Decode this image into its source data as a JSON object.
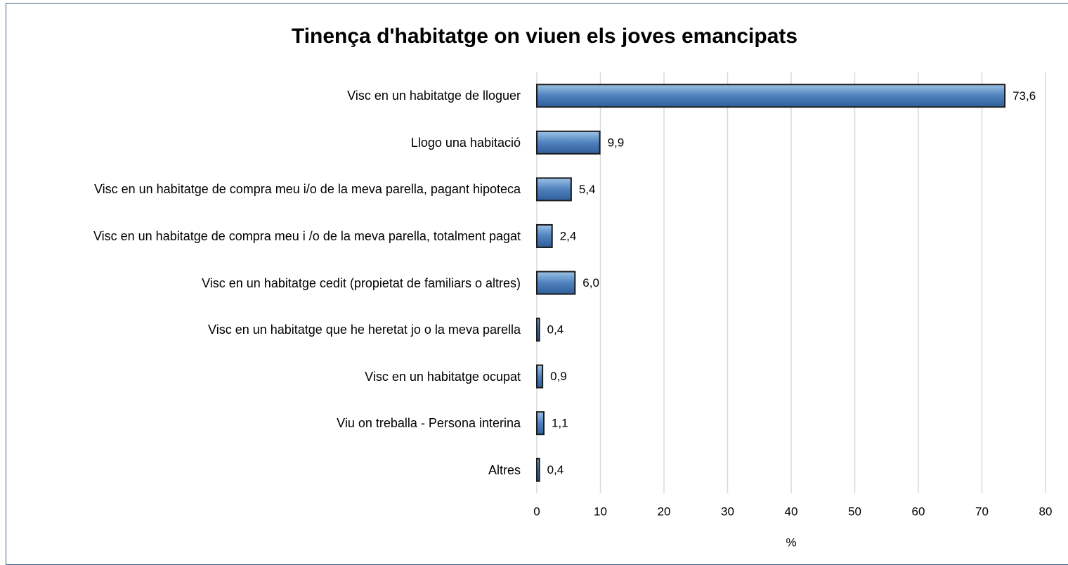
{
  "chart_data": {
    "type": "bar",
    "orientation": "horizontal",
    "title": "Tinença d'habitatge on viuen els joves emancipats",
    "categories": [
      "Visc en un habitatge de lloguer",
      "Llogo una habitació",
      "Visc en un habitatge de compra meu i/o de la meva parella, pagant hipoteca",
      "Visc en un habitatge de compra meu i /o de la meva parella, totalment pagat",
      "Visc en un habitatge cedit (propietat de familiars o altres)",
      "Visc en un habitatge que he heretat jo o la meva parella",
      "Visc en un habitatge ocupat",
      "Viu on treballa - Persona interina",
      "Altres"
    ],
    "values": [
      73.6,
      9.9,
      5.4,
      2.4,
      6.0,
      0.4,
      0.9,
      1.1,
      0.4
    ],
    "value_labels": [
      "73,6",
      "9,9",
      "5,4",
      "2,4",
      "6,0",
      "0,4",
      "0,9",
      "1,1",
      "0,4"
    ],
    "color": "#4f81bd",
    "x_label": "%",
    "xlim": [
      0,
      80
    ],
    "xticks": [
      0,
      10,
      20,
      30,
      40,
      50,
      60,
      70,
      80
    ],
    "grid": true
  }
}
